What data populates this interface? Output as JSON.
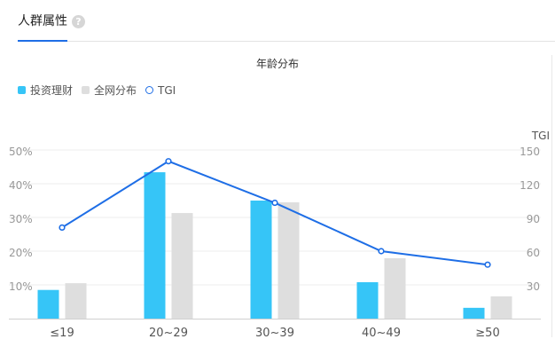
{
  "tabs": [
    {
      "label": "人群属性",
      "active": true
    }
  ],
  "help_icon": "?",
  "chart_data": {
    "type": "bar",
    "title": "年龄分布",
    "categories": [
      "≤19",
      "20~29",
      "30~39",
      "40~49",
      "≥50"
    ],
    "series": [
      {
        "name": "投资理财",
        "type": "bar",
        "axis": "left",
        "color": "#36c5f7",
        "values": [
          8.5,
          43.4,
          35.0,
          10.8,
          3.2
        ]
      },
      {
        "name": "全网分布",
        "type": "bar",
        "axis": "left",
        "color": "#dedede",
        "values": [
          10.5,
          31.3,
          34.5,
          17.9,
          6.6
        ]
      },
      {
        "name": "TGI",
        "type": "line",
        "axis": "right",
        "color": "#1e6ee6",
        "values": [
          81,
          140,
          103,
          60,
          48
        ]
      }
    ],
    "xlabel": "",
    "ylabel": "",
    "ylabel_right": "TGI",
    "ylim": [
      0,
      50
    ],
    "ylim_right": [
      0,
      150
    ],
    "yticks": [
      "10%",
      "20%",
      "30%",
      "40%",
      "50%"
    ],
    "yticks_right": [
      "30",
      "60",
      "90",
      "120",
      "150"
    ],
    "grid": true,
    "legend_position": "top-left"
  },
  "legend": [
    {
      "label": "投资理财",
      "kind": "square",
      "color": "#36c5f7"
    },
    {
      "label": "全网分布",
      "kind": "square",
      "color": "#dedede"
    },
    {
      "label": "TGI",
      "kind": "ring",
      "color": "#1e6ee6"
    }
  ]
}
